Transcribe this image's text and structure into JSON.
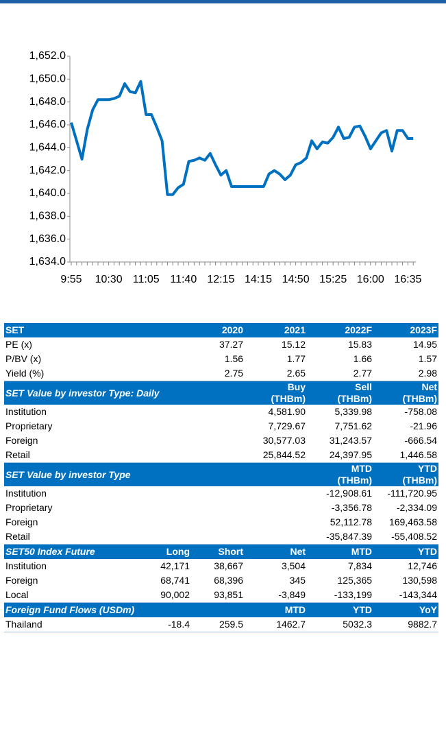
{
  "chart_data": {
    "type": "line",
    "color": "#0070c0",
    "categories": [
      "9:55",
      null,
      null,
      null,
      null,
      null,
      null,
      "10:30",
      null,
      null,
      null,
      null,
      null,
      null,
      "11:05",
      null,
      null,
      null,
      null,
      null,
      null,
      "11:40",
      null,
      null,
      null,
      null,
      null,
      null,
      "12:15",
      null,
      null,
      null,
      null,
      null,
      null,
      "14:15",
      null,
      null,
      null,
      null,
      null,
      null,
      "14:50",
      null,
      null,
      null,
      null,
      null,
      null,
      "15:25",
      null,
      null,
      null,
      null,
      null,
      null,
      "16:00",
      null,
      null,
      null,
      null,
      null,
      null,
      "16:35",
      null
    ],
    "values": [
      1646.2,
      1644.6,
      1643.0,
      1645.6,
      1647.3,
      1648.2,
      1648.2,
      1648.2,
      1648.3,
      1648.5,
      1649.6,
      1648.9,
      1648.8,
      1649.8,
      1646.9,
      1646.9,
      1645.8,
      1644.6,
      1639.9,
      1639.9,
      1640.5,
      1640.8,
      1642.8,
      1642.9,
      1643.1,
      1642.9,
      1643.5,
      1642.5,
      1641.6,
      1642.0,
      1640.6,
      1640.6,
      1640.6,
      1640.6,
      1640.6,
      1640.6,
      1640.6,
      1641.7,
      1642.0,
      1641.7,
      1641.2,
      1641.6,
      1642.5,
      1642.7,
      1643.1,
      1644.6,
      1643.9,
      1644.5,
      1644.4,
      1644.9,
      1645.8,
      1644.8,
      1644.9,
      1645.8,
      1645.9,
      1645.0,
      1643.9,
      1644.6,
      1645.3,
      1645.5,
      1643.7,
      1645.5,
      1645.5,
      1644.8,
      1644.8
    ],
    "ylim": [
      1634,
      1652
    ],
    "yticks": [
      {
        "value": 1634,
        "label": "1,634.0"
      },
      {
        "value": 1636,
        "label": "1,636.0"
      },
      {
        "value": 1638,
        "label": "1,638.0"
      },
      {
        "value": 1640,
        "label": "1,640.0"
      },
      {
        "value": 1642,
        "label": "1,642.0"
      },
      {
        "value": 1644,
        "label": "1,644.0"
      },
      {
        "value": 1646,
        "label": "1,646.0"
      },
      {
        "value": 1648,
        "label": "1,648.0"
      },
      {
        "value": 1650,
        "label": "1,650.0"
      },
      {
        "value": 1652,
        "label": "1,652.0"
      }
    ],
    "grid": false
  },
  "tables": {
    "sections": [
      {
        "title": "SET",
        "italic": false,
        "columns": [
          null,
          [
            "2020"
          ],
          [
            "2021"
          ],
          [
            "2022F"
          ],
          [
            "2023F"
          ]
        ],
        "rows": [
          {
            "cells": [
              "PE (x)",
              null,
              "37.27",
              "15.12",
              "15.83",
              "14.95"
            ]
          },
          {
            "cells": [
              "P/BV (x)",
              null,
              "1.56",
              "1.77",
              "1.66",
              "1.57"
            ]
          },
          {
            "cells": [
              "Yield (%)",
              null,
              "2.75",
              "2.65",
              "2.77",
              "2.98"
            ]
          }
        ]
      },
      {
        "title": "SET Value by investor Type: Daily",
        "italic": true,
        "columns": [
          null,
          null,
          [
            "Buy",
            "(THBm)"
          ],
          [
            "Sell",
            "(THBm)"
          ],
          [
            "Net",
            "(THBm)"
          ]
        ],
        "rows": [
          {
            "cells": [
              "Institution",
              null,
              null,
              "4,581.90",
              "5,339.98",
              "-758.08"
            ]
          },
          {
            "cells": [
              "Proprietary",
              null,
              null,
              "7,729.67",
              "7,751.62",
              "-21.96"
            ]
          },
          {
            "cells": [
              "Foreign",
              null,
              null,
              "30,577.03",
              "31,243.57",
              "-666.54"
            ]
          },
          {
            "cells": [
              "Retail",
              null,
              null,
              "25,844.52",
              "24,397.95",
              "1,446.58"
            ]
          }
        ]
      },
      {
        "title": "SET Value by investor Type",
        "italic": true,
        "columns": [
          null,
          null,
          null,
          [
            "MTD",
            "(THBm)"
          ],
          [
            "YTD",
            "(THBm)"
          ]
        ],
        "rows": [
          {
            "cells": [
              "Institution",
              null,
              null,
              null,
              "-12,908.61",
              "-111,720.95"
            ]
          },
          {
            "cells": [
              "Proprietary",
              null,
              null,
              null,
              "-3,356.78",
              "-2,334.09"
            ]
          },
          {
            "cells": [
              "Foreign",
              null,
              null,
              null,
              "52,112.78",
              "169,463.58"
            ]
          },
          {
            "cells": [
              "Retail",
              null,
              null,
              null,
              "-35,847.39",
              "-55,408.52"
            ]
          }
        ]
      },
      {
        "title": "SET50 Index Future",
        "italic": true,
        "columns": [
          [
            "Long"
          ],
          [
            "Short"
          ],
          [
            "Net"
          ],
          [
            "MTD"
          ],
          [
            "YTD"
          ]
        ],
        "rows": [
          {
            "cells": [
              "Institution",
              "42,171",
              "38,667",
              "3,504",
              "7,834",
              "12,746"
            ]
          },
          {
            "cells": [
              "Foreign",
              "68,741",
              "68,396",
              "345",
              "125,365",
              "130,598"
            ]
          },
          {
            "cells": [
              "Local",
              "90,002",
              "93,851",
              "-3,849",
              "-133,199",
              "-143,344"
            ]
          }
        ]
      },
      {
        "title": "Foreign Fund Flows (USDm)",
        "italic": true,
        "columns": [
          null,
          null,
          [
            "MTD"
          ],
          [
            "YTD"
          ],
          [
            "YoY"
          ]
        ],
        "rows": [
          {
            "cells": [
              "Thailand",
              "-18.4",
              "259.5",
              "1462.7",
              "5032.3",
              "9882.7"
            ]
          }
        ]
      }
    ]
  }
}
